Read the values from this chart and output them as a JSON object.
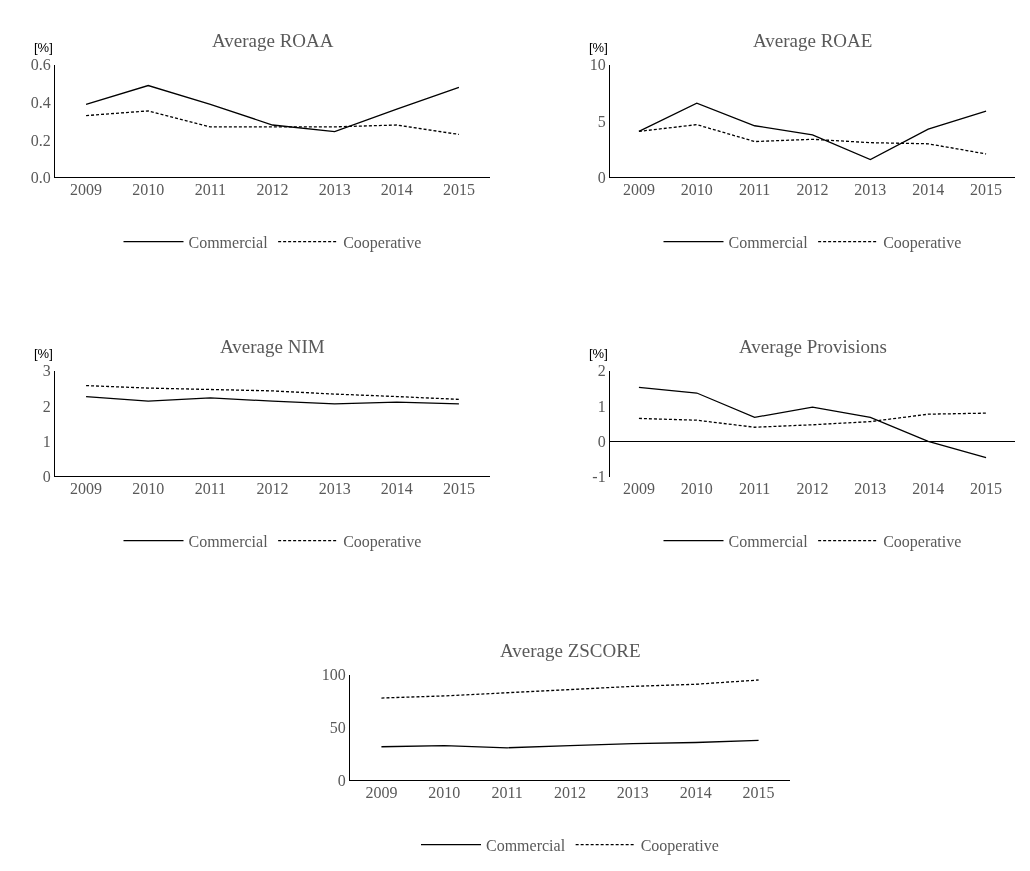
{
  "chart_data": [
    {
      "type": "line",
      "title": "Average ROAA",
      "ylabel": "[%]",
      "categories": [
        "2009",
        "2010",
        "2011",
        "2012",
        "2013",
        "2014",
        "2015"
      ],
      "ylim": [
        0,
        0.6
      ],
      "yticks": [
        {
          "value": 0,
          "label": "0.0"
        },
        {
          "value": 0.2,
          "label": "0.2"
        },
        {
          "value": 0.4,
          "label": "0.4"
        },
        {
          "value": 0.6,
          "label": "0.6"
        }
      ],
      "legend": "bottom",
      "marker": "none",
      "series": [
        {
          "name": "Commercial",
          "color": "#000000",
          "line_style": "solid",
          "values": [
            0.39,
            0.49,
            0.39,
            0.28,
            0.245,
            0.365,
            0.48
          ]
        },
        {
          "name": "Cooperative",
          "color": "#000000",
          "line_style": "dashed",
          "values": [
            0.33,
            0.355,
            0.27,
            0.27,
            0.27,
            0.28,
            0.23
          ]
        }
      ]
    },
    {
      "type": "line",
      "title": "Average ROAE",
      "ylabel": "[%]",
      "categories": [
        "2009",
        "2010",
        "2011",
        "2012",
        "2013",
        "2014",
        "2015"
      ],
      "ylim": [
        0,
        10
      ],
      "yticks": [
        0,
        5,
        10
      ],
      "legend": "bottom",
      "marker": "none",
      "series": [
        {
          "name": "Commercial",
          "color": "#000000",
          "line_style": "solid",
          "values": [
            4.1,
            6.6,
            4.6,
            3.8,
            1.6,
            4.3,
            5.9
          ]
        },
        {
          "name": "Cooperative",
          "color": "#000000",
          "line_style": "dashed",
          "values": [
            4.1,
            4.7,
            3.2,
            3.4,
            3.1,
            3.0,
            2.1
          ]
        }
      ]
    },
    {
      "type": "line",
      "title": "Average NIM",
      "ylabel": "[%]",
      "categories": [
        "2009",
        "2010",
        "2011",
        "2012",
        "2013",
        "2014",
        "2015"
      ],
      "ylim": [
        0,
        3
      ],
      "yticks": [
        0,
        1,
        2,
        3
      ],
      "legend": "bottom",
      "marker": "none",
      "series": [
        {
          "name": "Commercial",
          "color": "#000000",
          "line_style": "solid",
          "values": [
            2.27,
            2.14,
            2.23,
            2.14,
            2.06,
            2.11,
            2.06
          ]
        },
        {
          "name": "Cooperative",
          "color": "#000000",
          "line_style": "dashed",
          "values": [
            2.58,
            2.51,
            2.47,
            2.43,
            2.34,
            2.27,
            2.19
          ]
        }
      ]
    },
    {
      "type": "line",
      "title": "Average Provisions",
      "ylabel": "[%]",
      "categories": [
        "2009",
        "2010",
        "2011",
        "2012",
        "2013",
        "2014",
        "2015"
      ],
      "ylim": [
        -1,
        2
      ],
      "yticks": [
        -1,
        0,
        1,
        2
      ],
      "legend": "bottom",
      "marker": "none",
      "series": [
        {
          "name": "Commercial",
          "color": "#000000",
          "line_style": "solid",
          "values": [
            1.53,
            1.37,
            0.68,
            0.97,
            0.68,
            0.0,
            -0.46
          ]
        },
        {
          "name": "Cooperative",
          "color": "#000000",
          "line_style": "dashed",
          "values": [
            0.65,
            0.6,
            0.4,
            0.47,
            0.56,
            0.77,
            0.8
          ]
        }
      ]
    },
    {
      "type": "line",
      "title": "Average ZSCORE",
      "categories": [
        "2009",
        "2010",
        "2011",
        "2012",
        "2013",
        "2014",
        "2015"
      ],
      "ylim": [
        0,
        100
      ],
      "yticks": [
        0,
        50,
        100
      ],
      "legend": "bottom",
      "marker": "none",
      "series": [
        {
          "name": "Commercial",
          "color": "#000000",
          "line_style": "solid",
          "values": [
            32,
            33,
            31,
            33,
            35,
            36,
            38
          ]
        },
        {
          "name": "Cooperative",
          "color": "#000000",
          "line_style": "dashed",
          "values": [
            78,
            80,
            83,
            86,
            89,
            91,
            95
          ]
        }
      ]
    }
  ]
}
